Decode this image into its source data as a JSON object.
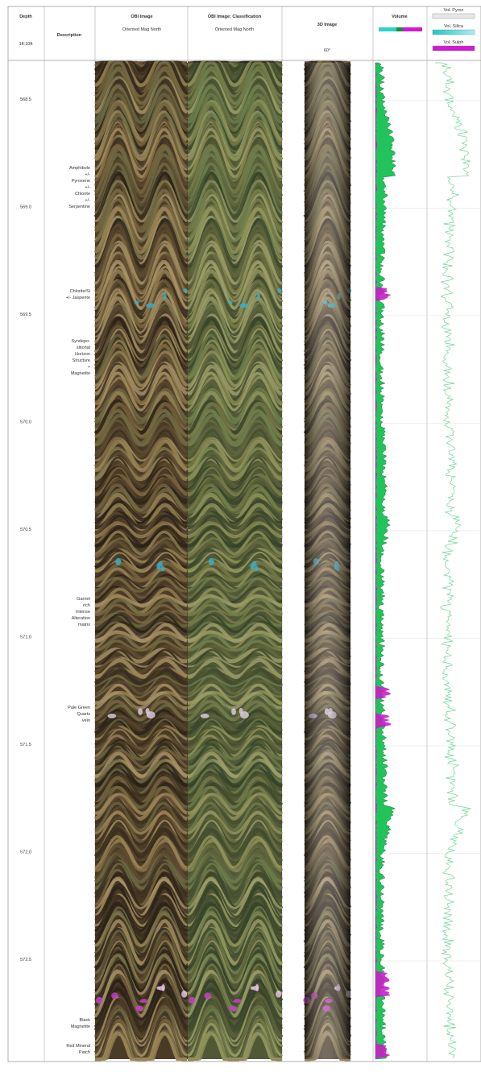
{
  "header": {
    "depth": {
      "title": "Depth",
      "subtitle": "1ft:10ft"
    },
    "description": "Description",
    "obi_image": {
      "title": "OBI Image",
      "subtitle": "Oriented Mag North"
    },
    "obi_classification": {
      "title": "OBI Image: Classification",
      "subtitle": "Oriented Mag North"
    },
    "image_3d": {
      "title": "3D Image",
      "subtitle": "60°"
    },
    "volume": {
      "title": "Volume"
    },
    "legend": [
      "Vol. Pyrox",
      "Vol. Silica",
      "Vol. Sulph"
    ]
  },
  "depths": [
    "568.5",
    "569.0",
    "569.5",
    "570.0",
    "570.5",
    "571.0",
    "571.5",
    "572.0",
    "572.5"
  ],
  "descriptions": [
    {
      "lines": [
        "Amphibole",
        "+/-",
        "Pyroxene",
        "+/-",
        "Chlorite",
        "+/-",
        "Serpentine"
      ]
    },
    {
      "lines": [
        "Chlorite/Si",
        "+/- Jasperite"
      ]
    },
    {
      "lines": [
        "Syndepo-",
        "sitional",
        "Horizon",
        "Structure",
        "+",
        "Magnetite"
      ]
    },
    {
      "lines": [
        "Garnet",
        "rich",
        "Intense",
        "Alteration",
        "matrix"
      ]
    },
    {
      "lines": [
        "Pale Green",
        "Quartz",
        "vein"
      ]
    },
    {
      "lines": [
        "Black",
        "Magnetite"
      ]
    },
    {
      "lines": [
        "Red Mineral",
        "Patch"
      ]
    }
  ]
}
